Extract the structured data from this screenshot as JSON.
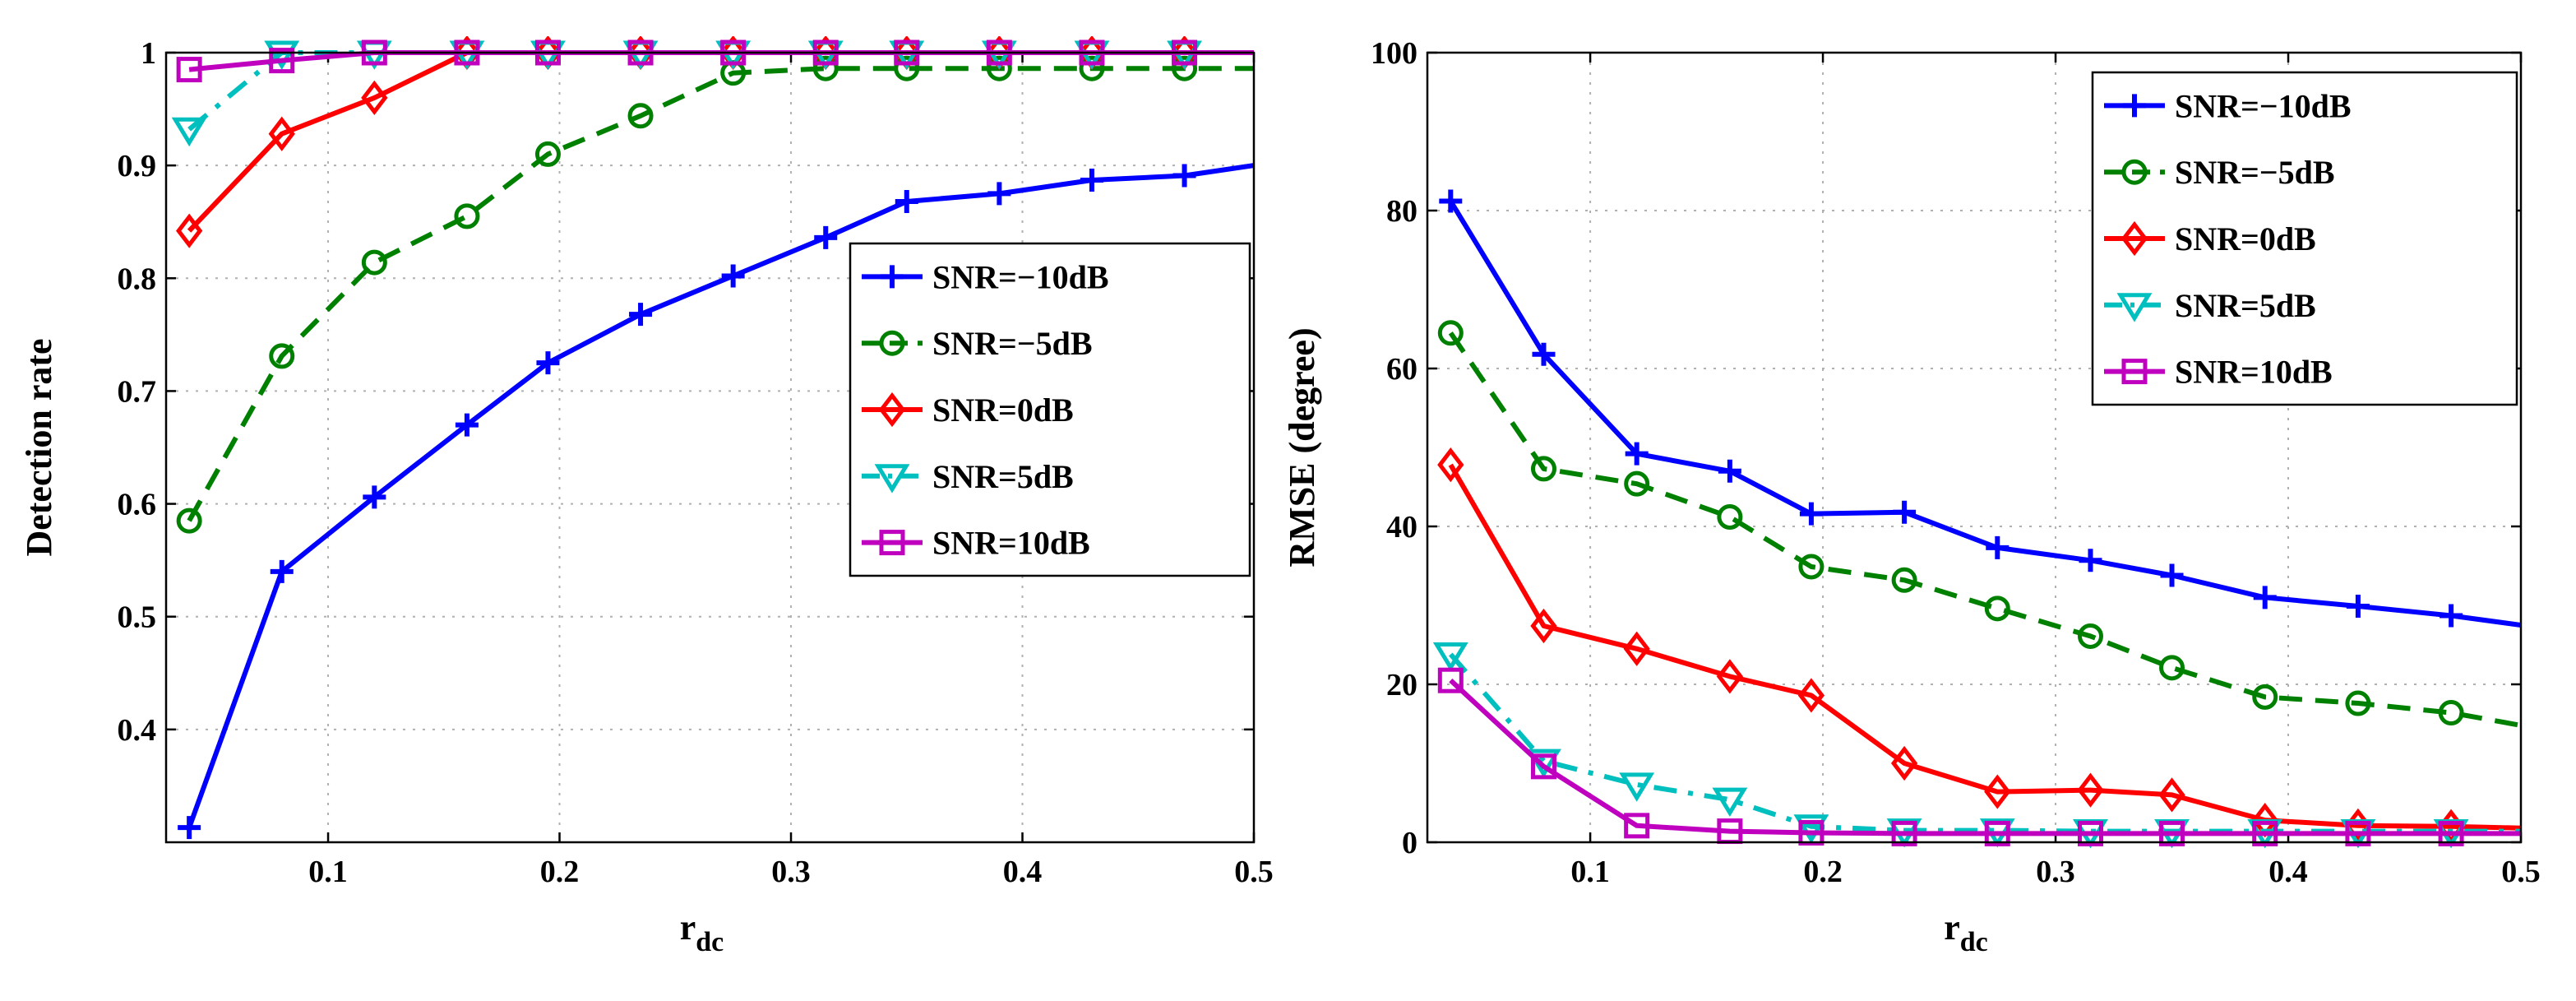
{
  "chart_data": [
    {
      "type": "line",
      "xlabel_main": "r",
      "xlabel_sub": "dc",
      "ylabel": "Detection rate",
      "xlim": [
        0.03,
        0.5
      ],
      "ylim": [
        0.3,
        1.0
      ],
      "xticks": [
        0.1,
        0.2,
        0.3,
        0.4,
        0.5
      ],
      "xtick_labels": [
        "0.1",
        "0.2",
        "0.3",
        "0.4",
        "0.5"
      ],
      "yticks": [
        0.4,
        0.5,
        0.6,
        0.7,
        0.8,
        0.9,
        1.0
      ],
      "ytick_labels": [
        "0.4",
        "0.5",
        "0.6",
        "0.7",
        "0.8",
        "0.9",
        "1"
      ],
      "grid": true,
      "legend_position": "center-right",
      "x": [
        0.04,
        0.08,
        0.12,
        0.16,
        0.195,
        0.235,
        0.275,
        0.315,
        0.35,
        0.39,
        0.43,
        0.47,
        0.5
      ],
      "series": [
        {
          "name": "SNR=−10dB",
          "color": "#0000ff",
          "marker": "plus",
          "dash": "solid",
          "values": [
            0.313,
            0.54,
            0.606,
            0.67,
            0.725,
            0.768,
            0.802,
            0.836,
            0.868,
            0.875,
            0.887,
            0.891,
            0.9
          ]
        },
        {
          "name": "SNR=−5dB",
          "color": "#008000",
          "marker": "circle",
          "dash": "dashed",
          "values": [
            0.585,
            0.731,
            0.814,
            0.855,
            0.91,
            0.944,
            0.982,
            0.986,
            0.986,
            0.986,
            0.986,
            0.986,
            0.986
          ]
        },
        {
          "name": "SNR=0dB",
          "color": "#ff0000",
          "marker": "diamond",
          "dash": "solid",
          "values": [
            0.842,
            0.928,
            0.96,
            1.0,
            1.0,
            1.0,
            1.0,
            1.0,
            1.0,
            1.0,
            1.0,
            1.0,
            1.0
          ]
        },
        {
          "name": "SNR=5dB",
          "color": "#00bfbf",
          "marker": "triangle",
          "dash": "dashdot",
          "values": [
            0.932,
            1.0,
            1.0,
            1.0,
            1.0,
            1.0,
            1.0,
            1.0,
            1.0,
            1.0,
            1.0,
            1.0,
            1.0
          ]
        },
        {
          "name": "SNR=10dB",
          "color": "#bf00bf",
          "marker": "square",
          "dash": "solid",
          "values": [
            0.985,
            0.993,
            1.0,
            1.0,
            1.0,
            1.0,
            1.0,
            1.0,
            1.0,
            1.0,
            1.0,
            1.0,
            1.0
          ]
        }
      ]
    },
    {
      "type": "line",
      "xlabel_main": "r",
      "xlabel_sub": "dc",
      "ylabel": "RMSE (degree)",
      "xlim": [
        0.03,
        0.5
      ],
      "ylim": [
        0,
        100
      ],
      "xticks": [
        0.1,
        0.2,
        0.3,
        0.4,
        0.5
      ],
      "xtick_labels": [
        "0.1",
        "0.2",
        "0.3",
        "0.4",
        "0.5"
      ],
      "yticks": [
        0,
        20,
        40,
        60,
        80,
        100
      ],
      "ytick_labels": [
        "0",
        "20",
        "40",
        "60",
        "80",
        "100"
      ],
      "grid": true,
      "legend_position": "top-right",
      "x": [
        0.04,
        0.08,
        0.12,
        0.16,
        0.195,
        0.235,
        0.275,
        0.315,
        0.35,
        0.39,
        0.43,
        0.47,
        0.5
      ],
      "series": [
        {
          "name": "SNR=−10dB",
          "color": "#0000ff",
          "marker": "plus",
          "dash": "solid",
          "values": [
            81.2,
            61.8,
            49.2,
            47.0,
            41.6,
            41.8,
            37.3,
            35.7,
            33.8,
            31.0,
            29.9,
            28.7,
            27.5
          ]
        },
        {
          "name": "SNR=−5dB",
          "color": "#008000",
          "marker": "circle",
          "dash": "dashed",
          "values": [
            64.5,
            47.3,
            45.4,
            41.2,
            34.9,
            33.2,
            29.6,
            26.1,
            22.1,
            18.4,
            17.6,
            16.4,
            14.8
          ]
        },
        {
          "name": "SNR=0dB",
          "color": "#ff0000",
          "marker": "diamond",
          "dash": "solid",
          "values": [
            47.8,
            27.4,
            24.5,
            21.0,
            18.6,
            10.0,
            6.4,
            6.6,
            6.0,
            2.8,
            2.1,
            2.0,
            1.8
          ]
        },
        {
          "name": "SNR=5dB",
          "color": "#00bfbf",
          "marker": "triangle",
          "dash": "dashdot",
          "values": [
            23.8,
            10.3,
            7.3,
            5.4,
            2.0,
            1.5,
            1.5,
            1.4,
            1.4,
            1.4,
            1.4,
            1.4,
            1.4
          ]
        },
        {
          "name": "SNR=10dB",
          "color": "#bf00bf",
          "marker": "square",
          "dash": "solid",
          "values": [
            20.5,
            9.6,
            2.1,
            1.4,
            1.2,
            1.1,
            1.1,
            1.1,
            1.1,
            1.1,
            1.1,
            1.1,
            1.1
          ]
        }
      ]
    }
  ]
}
